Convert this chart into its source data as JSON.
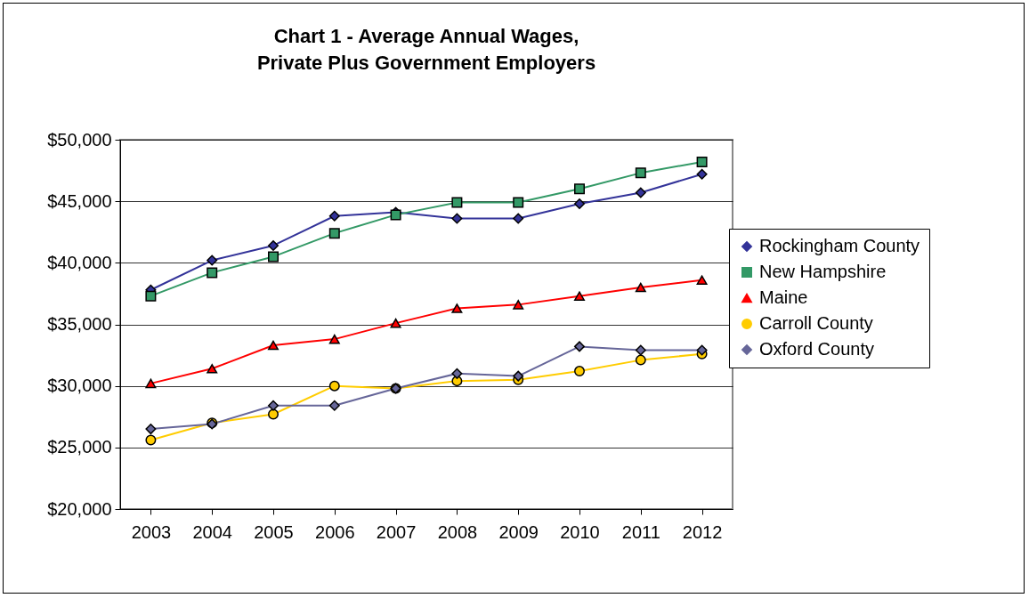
{
  "chart_data": {
    "type": "line",
    "title": "Chart 1 - Average Annual Wages,\nPrivate Plus Government Employers",
    "categories": [
      "2003",
      "2004",
      "2005",
      "2006",
      "2007",
      "2008",
      "2009",
      "2010",
      "2011",
      "2012"
    ],
    "series": [
      {
        "name": "Rockingham County",
        "color": "#333399",
        "marker": "diamond",
        "values": [
          37800,
          40200,
          41400,
          43800,
          44100,
          43600,
          43600,
          44800,
          45700,
          47200
        ]
      },
      {
        "name": "New Hampshire",
        "color": "#339966",
        "marker": "square",
        "values": [
          37300,
          39200,
          40500,
          42400,
          43900,
          44900,
          44900,
          46000,
          47300,
          48200
        ]
      },
      {
        "name": "Maine",
        "color": "#ff0000",
        "marker": "triangle",
        "values": [
          30200,
          31400,
          33300,
          33800,
          35100,
          36300,
          36600,
          37300,
          38000,
          38600
        ]
      },
      {
        "name": "Carroll County",
        "color": "#ffcc00",
        "marker": "circle",
        "values": [
          25600,
          27000,
          27700,
          30000,
          29800,
          30400,
          30500,
          31200,
          32100,
          32600
        ]
      },
      {
        "name": "Oxford County",
        "color": "#666699",
        "marker": "diamond",
        "values": [
          26500,
          26900,
          28400,
          28400,
          29800,
          31000,
          30800,
          33200,
          32900,
          32900
        ]
      }
    ],
    "ylim": [
      20000,
      50000
    ],
    "yticks": [
      {
        "value": 20000,
        "label": "$20,000"
      },
      {
        "value": 25000,
        "label": "$25,000"
      },
      {
        "value": 30000,
        "label": "$30,000"
      },
      {
        "value": 35000,
        "label": "$35,000"
      },
      {
        "value": 40000,
        "label": "$40,000"
      },
      {
        "value": 45000,
        "label": "$45,000"
      },
      {
        "value": 50000,
        "label": "$50,000"
      }
    ],
    "grid": "y",
    "legend": "right",
    "line_style": "solid"
  }
}
